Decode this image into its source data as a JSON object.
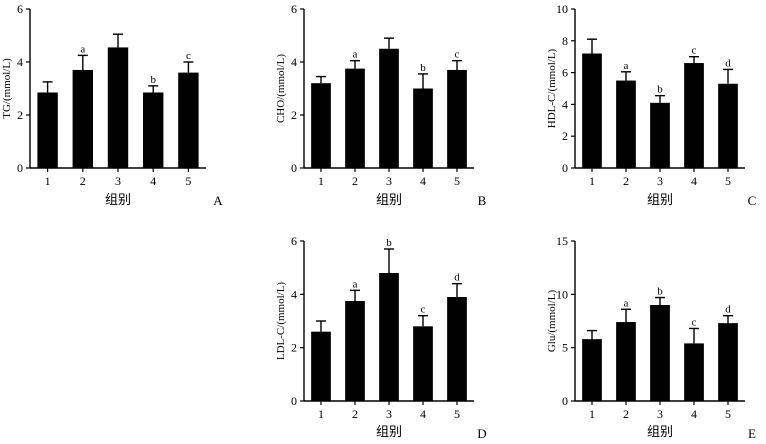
{
  "chart_data": [
    {
      "panel": "A",
      "type": "bar",
      "ylabel": "TG/(mmol/L)",
      "xlabel": "组别",
      "categories": [
        "1",
        "2",
        "3",
        "4",
        "5"
      ],
      "values": [
        2.85,
        3.7,
        4.55,
        2.85,
        3.6
      ],
      "errors": [
        0.4,
        0.55,
        0.5,
        0.25,
        0.4
      ],
      "letters": [
        "",
        "a",
        "",
        "b",
        "c"
      ],
      "ylim": [
        0,
        6
      ],
      "yticks": [
        "0",
        "2",
        "4",
        "6"
      ]
    },
    {
      "panel": "B",
      "type": "bar",
      "ylabel": "CHO/(mmol/L)",
      "xlabel": "组别",
      "categories": [
        "1",
        "2",
        "3",
        "4",
        "5"
      ],
      "values": [
        3.2,
        3.75,
        4.5,
        3.0,
        3.7
      ],
      "errors": [
        0.25,
        0.3,
        0.4,
        0.55,
        0.35
      ],
      "letters": [
        "",
        "a",
        "",
        "b",
        "c"
      ],
      "ylim": [
        0,
        6
      ],
      "yticks": [
        "0",
        "2",
        "4",
        "6"
      ]
    },
    {
      "panel": "C",
      "type": "bar",
      "ylabel": "HDL-C/(mmol/L)",
      "xlabel": "组别",
      "categories": [
        "1",
        "2",
        "3",
        "4",
        "5"
      ],
      "values": [
        7.2,
        5.5,
        4.1,
        6.6,
        5.3
      ],
      "errors": [
        0.9,
        0.55,
        0.45,
        0.4,
        0.9
      ],
      "letters": [
        "",
        "a",
        "b",
        "c",
        "d"
      ],
      "ylim": [
        0,
        10
      ],
      "yticks": [
        "0",
        "2",
        "4",
        "6",
        "8",
        "10"
      ]
    },
    {
      "panel": "D",
      "type": "bar",
      "ylabel": "LDL-C/(mmol/L)",
      "xlabel": "组别",
      "categories": [
        "1",
        "2",
        "3",
        "4",
        "5"
      ],
      "values": [
        2.6,
        3.75,
        4.8,
        2.8,
        3.9
      ],
      "errors": [
        0.4,
        0.4,
        0.9,
        0.4,
        0.5
      ],
      "letters": [
        "",
        "a",
        "b",
        "c",
        "d"
      ],
      "ylim": [
        0,
        6
      ],
      "yticks": [
        "0",
        "2",
        "4",
        "6"
      ]
    },
    {
      "panel": "E",
      "type": "bar",
      "ylabel": "Glu/(mmol/L)",
      "xlabel": "组别",
      "categories": [
        "1",
        "2",
        "3",
        "4",
        "5"
      ],
      "values": [
        5.8,
        7.4,
        9.0,
        5.4,
        7.3
      ],
      "errors": [
        0.8,
        1.2,
        0.7,
        1.4,
        0.7
      ],
      "letters": [
        "",
        "a",
        "b",
        "c",
        "d"
      ],
      "ylim": [
        0,
        15
      ],
      "yticks": [
        "0",
        "5",
        "10",
        "15"
      ]
    }
  ],
  "style": {
    "bar_color": "#000000",
    "axis_color": "#000000",
    "background": "#ffffff"
  }
}
